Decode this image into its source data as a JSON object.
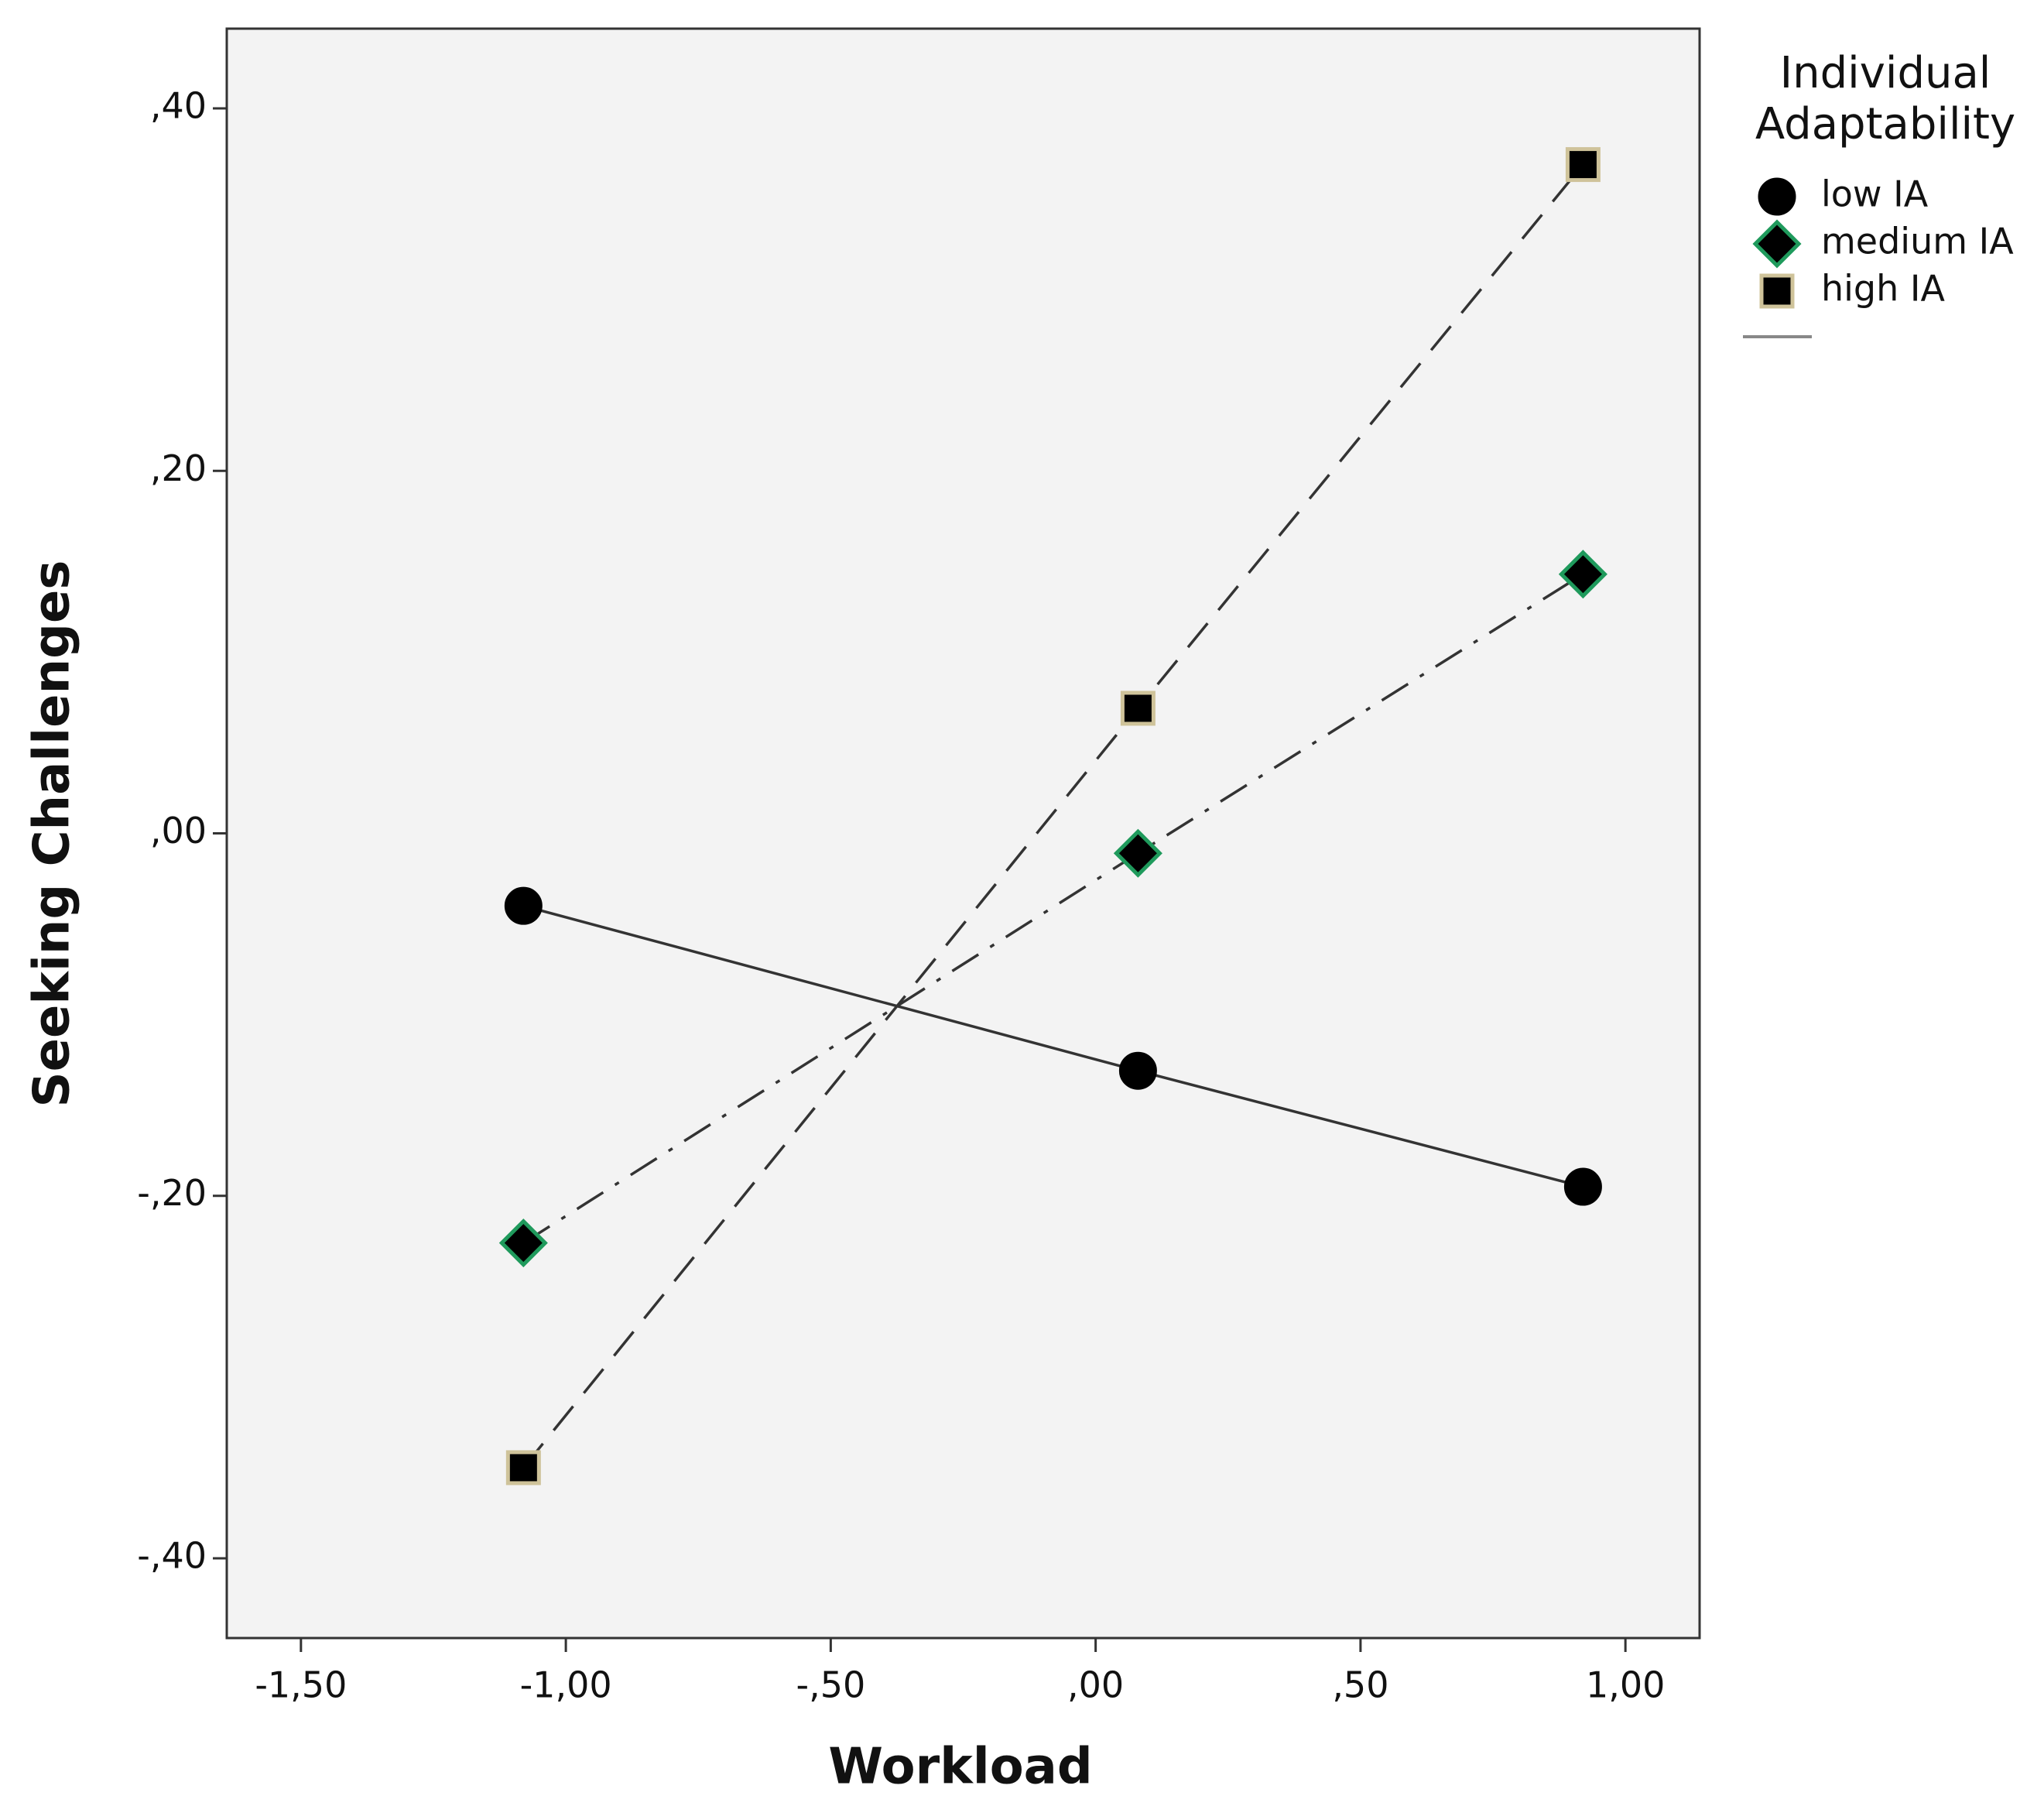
{
  "chart_data": {
    "type": "line",
    "x_label": "Workload",
    "y_label": "Seeking Challenges",
    "legend_title": "Individual Adaptability",
    "x": [
      -1.08,
      0.08,
      0.92
    ],
    "series": [
      {
        "name": "low IA",
        "color": "#000000",
        "marker": "circle",
        "dash": "solid",
        "values": [
          -0.04,
          -0.131,
          -0.195
        ]
      },
      {
        "name": "medium IA",
        "color": "#000000",
        "edgecolor": "#1f9a5c",
        "marker": "diamond",
        "dash": "dashdot",
        "values": [
          -0.226,
          -0.011,
          0.143
        ]
      },
      {
        "name": "high IA",
        "color": "#000000",
        "edgecolor": "#cfc39a",
        "marker": "square",
        "dash": "dashed",
        "values": [
          -0.35,
          0.069,
          0.369
        ]
      }
    ],
    "xlim": [
      -1.64,
      1.14
    ],
    "ylim": [
      -0.444,
      0.444
    ],
    "xticks": [
      {
        "value": -1.5,
        "label": "-1,50"
      },
      {
        "value": -1.0,
        "label": "-1,00"
      },
      {
        "value": -0.5,
        "label": "-,50"
      },
      {
        "value": 0,
        "label": ",00"
      },
      {
        "value": 0.5,
        "label": ",50"
      },
      {
        "value": 1.0,
        "label": "1,00"
      }
    ],
    "yticks": [
      {
        "value": -0.4,
        "label": "-,40"
      },
      {
        "value": -0.2,
        "label": "-,20"
      },
      {
        "value": 0,
        "label": ",00"
      },
      {
        "value": 0.2,
        "label": ",20"
      },
      {
        "value": 0.4,
        "label": ",40"
      }
    ],
    "grid": false,
    "legend_position": "right"
  }
}
